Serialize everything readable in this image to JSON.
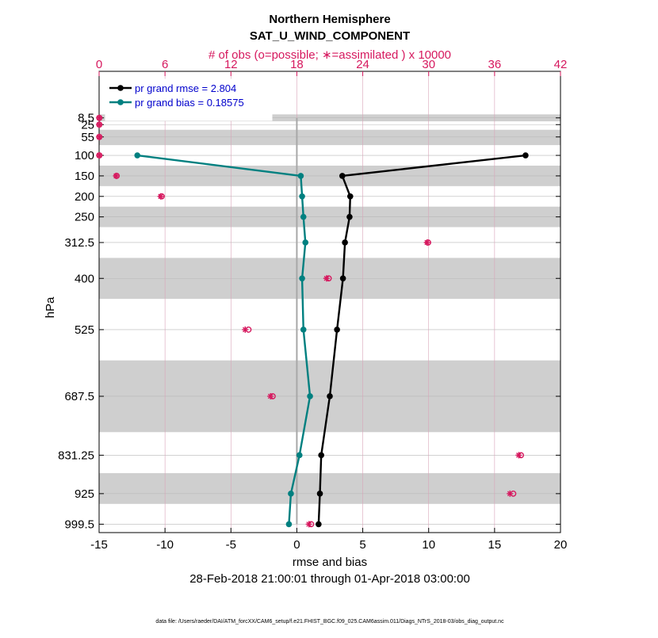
{
  "chart_data": {
    "type": "line",
    "title": "Northern Hemisphere",
    "subtitle": "SAT_U_WIND_COMPONENT",
    "top_axis_label": "# of obs (o=possible; ∗=assimilated ) x 10000",
    "xlabel": "rmse and bias",
    "ylabel": "hPa",
    "date_range": "28-Feb-2018 21:00:01 through 01-Apr-2018 03:00:00",
    "footnote": "data file: /Users/raeder/DAI/ATM_forcXX/CAM6_setup/f.e21.FHIST_BGC.f09_025.CAM6assim.011/Diags_NTrS_2018-03/obs_diag_output.nc",
    "xlim": [
      -15,
      20
    ],
    "x_ticks": [
      -15,
      -10,
      -5,
      0,
      5,
      10,
      15,
      20
    ],
    "x_tick_labels": [
      "-15",
      "-10",
      "-5",
      "0",
      "5",
      "10",
      "15",
      "20"
    ],
    "top_xlim": [
      0,
      42
    ],
    "top_ticks": [
      0,
      6,
      12,
      18,
      24,
      30,
      36,
      42
    ],
    "top_tick_labels": [
      "0",
      "6",
      "12",
      "18",
      "24",
      "30",
      "36",
      "42"
    ],
    "ylim": [
      1020,
      -105
    ],
    "y_levels": [
      8.5,
      25,
      55,
      100,
      150,
      200,
      250,
      312.5,
      400,
      525,
      687.5,
      831.25,
      925,
      999.5
    ],
    "y_tick_labels": [
      "8.5",
      "25",
      "55",
      "100",
      "150",
      "200",
      "250",
      "312.5",
      "400",
      "525",
      "687.5",
      "831.25",
      "925",
      "999.5"
    ],
    "shaded_bands": [
      [
        0,
        17
      ],
      [
        37.5,
        75
      ],
      [
        125,
        175
      ],
      [
        225,
        275
      ],
      [
        350,
        450
      ],
      [
        600,
        775
      ],
      [
        875,
        950
      ]
    ],
    "legend": {
      "position": "top-left",
      "entries": [
        {
          "label": "pr grand rmse = 2.804",
          "color": "#000000"
        },
        {
          "label": "pr grand bias = 0.18575",
          "color": "#008080"
        }
      ]
    },
    "series": [
      {
        "name": "rmse",
        "color": "#000000",
        "levels": [
          100,
          150,
          200,
          250,
          312.5,
          400,
          525,
          687.5,
          831.25,
          925,
          999.5
        ],
        "values": [
          17.35,
          3.45,
          4.05,
          4.0,
          3.65,
          3.5,
          3.05,
          2.5,
          1.85,
          1.75,
          1.65
        ]
      },
      {
        "name": "bias",
        "color": "#008080",
        "levels": [
          100,
          150,
          200,
          250,
          312.5,
          400,
          525,
          687.5,
          831.25,
          925,
          999.5
        ],
        "values": [
          -12.1,
          0.3,
          0.4,
          0.5,
          0.65,
          0.4,
          0.5,
          1.0,
          0.2,
          -0.45,
          -0.6
        ]
      }
    ],
    "obs_counts": {
      "color": "#D6185E",
      "levels": [
        8.5,
        25,
        55,
        100,
        150,
        200,
        312.5,
        400,
        525,
        687.5,
        831.25,
        925,
        999.5
      ],
      "possible": [
        0.02,
        0.02,
        0.02,
        0.02,
        1.6,
        5.7,
        29.95,
        20.9,
        13.6,
        15.8,
        38.4,
        37.7,
        19.3
      ],
      "assimilated": [
        0.02,
        0.02,
        0.02,
        0.02,
        1.55,
        5.6,
        29.85,
        20.7,
        13.3,
        15.6,
        38.2,
        37.4,
        19.1
      ]
    }
  }
}
